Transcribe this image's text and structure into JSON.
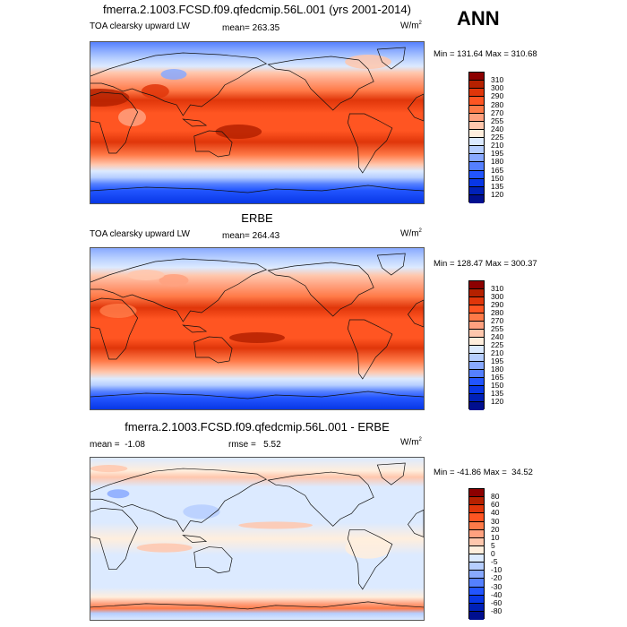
{
  "header": {
    "annotation": "ANN"
  },
  "panels": [
    {
      "title": "fmerra.2.1003.FCSD.f09.qfedcmip.56L.001 (yrs 2001-2014)",
      "variable": "TOA clearsky upward LW",
      "stat1": "mean= 263.35",
      "stat2": "",
      "units": "W/m",
      "units_sup": "2",
      "minmax": "Min = 131.64 Max = 310.68",
      "field": "model"
    },
    {
      "title": "ERBE",
      "variable": "TOA clearsky upward LW",
      "stat1": "mean= 264.43",
      "stat2": "",
      "units": "W/m",
      "units_sup": "2",
      "minmax": "Min = 128.47 Max = 300.37",
      "field": "obs"
    },
    {
      "title": "fmerra.2.1003.FCSD.f09.qfedcmip.56L.001 - ERBE",
      "variable": "",
      "stat1": "mean =  -1.08",
      "stat2": "rmse =   5.52",
      "units": "W/m",
      "units_sup": "2",
      "minmax": "Min = -41.86 Max =  34.52",
      "field": "diff"
    }
  ],
  "colorbars": {
    "colors": [
      "#8c0000",
      "#b52100",
      "#e0360a",
      "#ff5522",
      "#ff7a48",
      "#ffa17f",
      "#ffc7ad",
      "#ffeedd",
      "#dceaff",
      "#b6ceff",
      "#88a9ff",
      "#5580ff",
      "#2255ff",
      "#0837e6",
      "#0021b8",
      "#000f8f"
    ],
    "abs_labels": [
      "310",
      "300",
      "290",
      "280",
      "270",
      "255",
      "240",
      "225",
      "210",
      "195",
      "180",
      "165",
      "150",
      "135",
      "120"
    ],
    "diff_labels": [
      "80",
      "60",
      "40",
      "30",
      "20",
      "10",
      "5",
      "0",
      "-5",
      "-10",
      "-20",
      "-30",
      "-40",
      "-60",
      "-80"
    ]
  }
}
